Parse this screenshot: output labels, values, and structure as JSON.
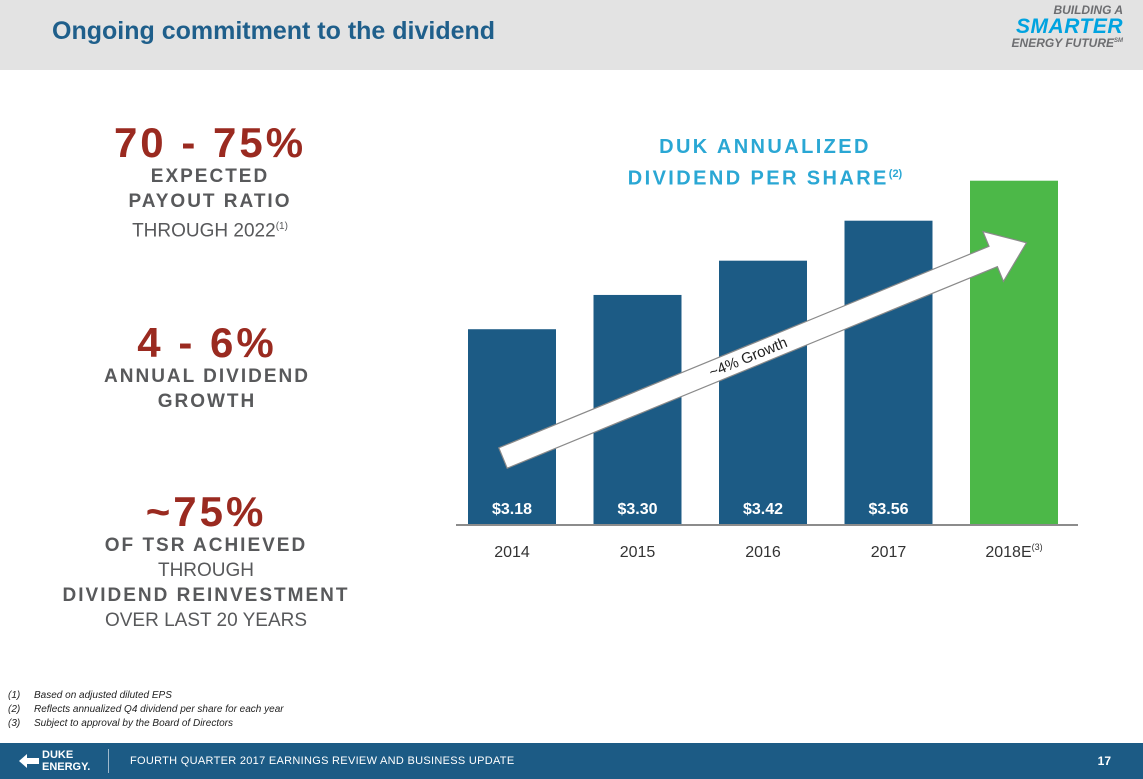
{
  "header": {
    "title": "Ongoing commitment to the dividend",
    "tagline_line1": "BUILDING A",
    "tagline_line2": "SMARTER",
    "tagline_line3": "ENERGY FUTURE",
    "tagline_tm": "SM"
  },
  "stats": [
    {
      "big": "70 - 75%",
      "line1": "EXPECTED",
      "line2": "PAYOUT RATIO",
      "line3": "THROUGH 2022",
      "line3_sup": "(1)"
    },
    {
      "big": "4 - 6%",
      "line1": "ANNUAL DIVIDEND",
      "line2": "GROWTH"
    },
    {
      "big": "~75%",
      "line1": "OF TSR ACHIEVED",
      "line2": "THROUGH",
      "line3": "DIVIDEND REINVESTMENT",
      "line4": "OVER LAST 20 YEARS"
    }
  ],
  "chart_data": {
    "type": "bar",
    "title_line1": "DUK ANNUALIZED",
    "title_line2": "DIVIDEND PER SHARE",
    "title_sup": "(2)",
    "categories": [
      "2014",
      "2015",
      "2016",
      "2017",
      "2018E"
    ],
    "category_sups": [
      "",
      "",
      "",
      "",
      "(3)"
    ],
    "values": [
      3.18,
      3.3,
      3.42,
      3.56,
      3.7
    ],
    "data_labels": [
      "$3.18",
      "$3.30",
      "$3.42",
      "$3.56",
      ""
    ],
    "bar_colors": [
      "#1c5b85",
      "#1c5b85",
      "#1c5b85",
      "#1c5b85",
      "#4cb848"
    ],
    "annotation": "~4% Growth",
    "xlabel": "",
    "ylabel": ""
  },
  "footnotes": [
    {
      "num": "(1)",
      "text": "Based on adjusted diluted EPS"
    },
    {
      "num": "(2)",
      "text": "Reflects annualized Q4 dividend per share for each year"
    },
    {
      "num": "(3)",
      "text": "Subject to approval by the Board of Directors"
    }
  ],
  "footer": {
    "logo_line1": "DUKE",
    "logo_line2": "ENERGY.",
    "text": "FOURTH QUARTER 2017 EARNINGS REVIEW AND BUSINESS UPDATE",
    "page_number": "17"
  },
  "colors": {
    "header_bg": "#e3e3e3",
    "title": "#1f5f8b",
    "stat_big": "#9a2a20",
    "stat_text": "#58595b",
    "chart_title": "#2aa7d4",
    "bar_blue": "#1c5b85",
    "bar_green": "#4cb848",
    "footer_bg": "#1c5b85"
  }
}
